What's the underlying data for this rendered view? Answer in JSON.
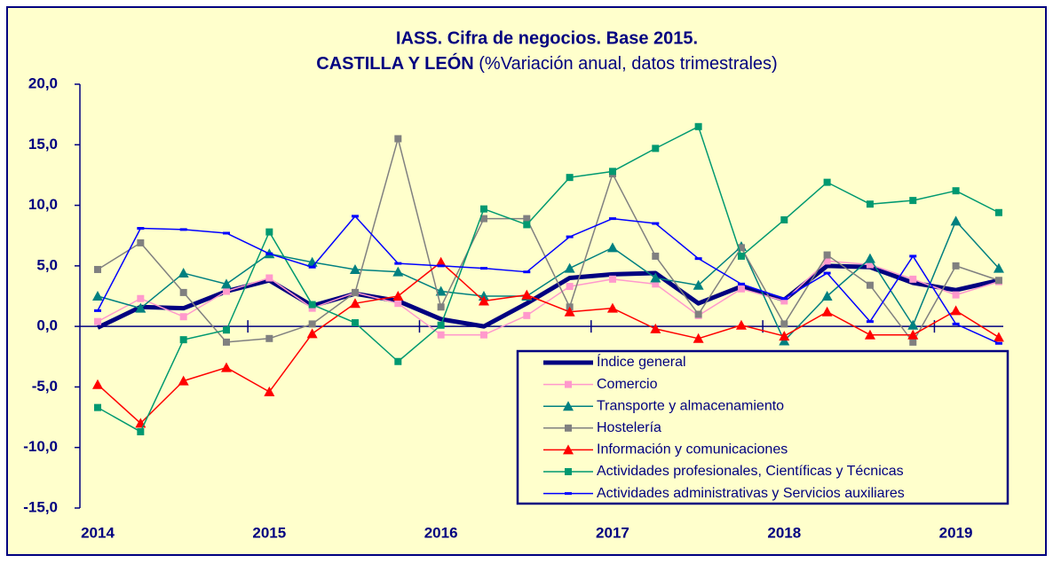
{
  "chart_data": {
    "type": "line",
    "title": "IASS. Cifra de negocios. Base 2015.",
    "subtitle_bold": "CASTILLA Y LEÓN",
    "subtitle": "(%Variación anual, datos trimestrales)",
    "categories": [
      "2014",
      null,
      null,
      null,
      "2015",
      null,
      null,
      null,
      "2016",
      null,
      null,
      null,
      "2017",
      null,
      null,
      null,
      "2018",
      null,
      null,
      null,
      "2019",
      null
    ],
    "ylim": [
      -15,
      20
    ],
    "yticks": [
      {
        "value": -15,
        "label": "-15,0"
      },
      {
        "value": -10,
        "label": "-10,0"
      },
      {
        "value": -5,
        "label": "-5,0"
      },
      {
        "value": 0,
        "label": "0,0"
      },
      {
        "value": 5,
        "label": "5,0"
      },
      {
        "value": 10,
        "label": "10,0"
      },
      {
        "value": 15,
        "label": "15,0"
      },
      {
        "value": 20,
        "label": "20,0"
      }
    ],
    "series": [
      {
        "name": "Índice general",
        "color": "#000080",
        "marker": "none",
        "width": 5,
        "values": [
          -0.1,
          1.6,
          1.5,
          2.9,
          3.8,
          1.7,
          2.7,
          2.1,
          0.6,
          0.0,
          1.9,
          4.0,
          4.3,
          4.4,
          1.9,
          3.3,
          2.2,
          5.0,
          4.9,
          3.6,
          3.0,
          3.8
        ]
      },
      {
        "name": "Comercio",
        "color": "#ff99cc",
        "marker": "square",
        "width": 1.5,
        "values": [
          0.4,
          2.3,
          0.8,
          2.9,
          4.0,
          1.5,
          2.8,
          1.9,
          -0.7,
          -0.7,
          0.9,
          3.3,
          3.9,
          3.5,
          0.9,
          3.1,
          2.1,
          5.4,
          5.1,
          3.9,
          2.6,
          3.7
        ]
      },
      {
        "name": "Transporte y almacenamiento",
        "color": "#008080",
        "marker": "triangle",
        "width": 1.5,
        "values": [
          2.5,
          1.5,
          4.4,
          3.5,
          6.0,
          5.3,
          4.7,
          4.5,
          2.9,
          2.5,
          2.5,
          4.8,
          6.5,
          4.0,
          3.4,
          6.6,
          -1.2,
          2.5,
          5.6,
          0.1,
          8.7,
          4.8
        ]
      },
      {
        "name": "Hostelería",
        "color": "#808080",
        "marker": "square",
        "width": 1.5,
        "values": [
          4.7,
          6.9,
          2.8,
          -1.3,
          -1.0,
          0.2,
          2.8,
          15.5,
          1.6,
          8.9,
          8.9,
          1.6,
          12.6,
          5.8,
          1.0,
          6.5,
          0.2,
          5.9,
          3.4,
          -1.3,
          5.0,
          3.8
        ]
      },
      {
        "name": "Información y comunicaciones",
        "color": "#ff0000",
        "marker": "triangle",
        "width": 1.5,
        "values": [
          -4.8,
          -8.0,
          -4.5,
          -3.4,
          -5.4,
          -0.6,
          1.9,
          2.5,
          5.3,
          2.1,
          2.6,
          1.2,
          1.5,
          -0.2,
          -1.0,
          0.1,
          -0.8,
          1.2,
          -0.7,
          -0.7,
          1.3,
          -0.9
        ]
      },
      {
        "name": "Actividades profesionales, Científicas y Técnicas",
        "color": "#009970",
        "marker": "square",
        "width": 1.5,
        "values": [
          -6.7,
          -8.7,
          -1.1,
          -0.3,
          7.8,
          1.8,
          0.3,
          -2.9,
          0.1,
          9.7,
          8.4,
          12.3,
          12.8,
          14.7,
          16.5,
          5.8,
          8.8,
          11.9,
          10.1,
          10.4,
          11.2,
          9.4
        ]
      },
      {
        "name": "Actividades administrativas y Servicios auxiliares",
        "color": "#0000ff",
        "marker": "dash",
        "width": 1.5,
        "values": [
          1.3,
          8.1,
          8.0,
          7.7,
          6.0,
          4.9,
          9.1,
          5.2,
          5.0,
          4.8,
          4.5,
          7.4,
          8.9,
          8.5,
          5.6,
          3.5,
          2.3,
          4.4,
          0.4,
          5.8,
          0.2,
          -1.4
        ]
      }
    ]
  }
}
